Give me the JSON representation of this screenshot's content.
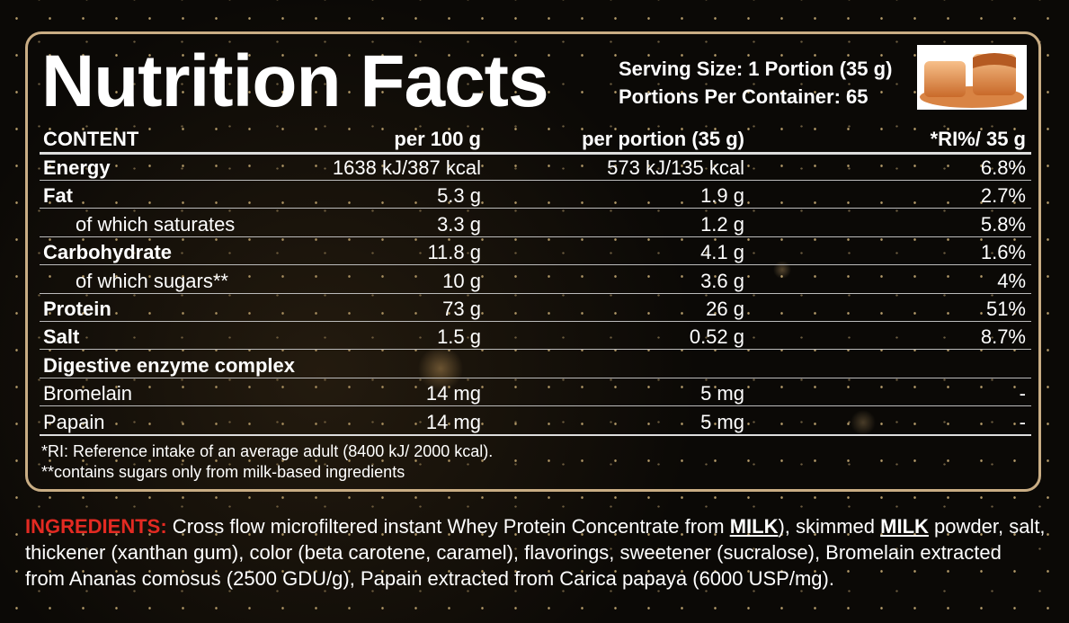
{
  "header": {
    "title": "Nutrition Facts",
    "serving_size": "Serving Size: 1 Portion (35 g)",
    "portions": "Portions Per Container: 65"
  },
  "table": {
    "columns": [
      "CONTENT",
      "per 100 g",
      "per portion (35 g)",
      "*RI%/ 35 g"
    ],
    "rows": [
      [
        "Energy",
        "1638 kJ/387 kcal",
        "573 kJ/135 kcal",
        "6.8%"
      ],
      [
        "Fat",
        "5.3 g",
        "1.9 g",
        "2.7%"
      ],
      [
        "of which saturates",
        "3.3 g",
        "1.2 g",
        "5.8%"
      ],
      [
        "Carbohydrate",
        "11.8 g",
        "4.1 g",
        "1.6%"
      ],
      [
        "of which sugars**",
        "10 g",
        "3.6 g",
        "4%"
      ],
      [
        "Protein",
        "73 g",
        "26 g",
        "51%"
      ],
      [
        "Salt",
        "1.5 g",
        "0.52 g",
        "8.7%"
      ],
      [
        "Digestive enzyme complex"
      ],
      [
        "Bromelain",
        "14 mg",
        "5 mg",
        "-"
      ],
      [
        "Papain",
        "14 mg",
        "5 mg",
        "-"
      ]
    ]
  },
  "footnotes": [
    "*RI: Reference intake of an average adult (8400 kJ/ 2000 kcal).",
    "**contains sugars only from milk-based ingredients"
  ],
  "ingredients": {
    "label": "INGREDIENTS:",
    "parts": [
      " Cross flow microfiltered instant Whey Protein Concentrate from ",
      "MILK",
      "), skimmed ",
      "MILK",
      " powder, salt, thickener (xanthan gum), color (beta carotene, caramel), flavorings, sweetener (sucralose), Bromelain extracted from Ananas comosus (2500 GDU/g), Papain extracted from Carica papaya (6000 USP/mg)."
    ]
  }
}
